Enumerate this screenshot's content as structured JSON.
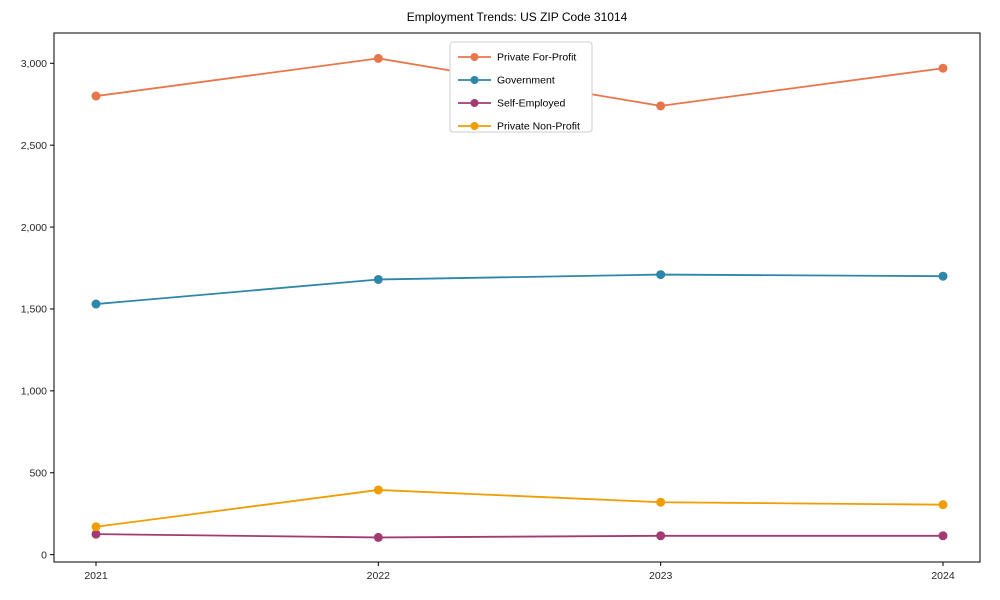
{
  "colors": {
    "axis": "#000000",
    "tick_text": "#262626",
    "legend_border": "#cccccc",
    "background": "#ffffff"
  },
  "chart_data": {
    "type": "line",
    "title": "Employment Trends: US ZIP Code 31014",
    "x": [
      2021,
      2022,
      2023,
      2024
    ],
    "xticklabels": [
      "2021",
      "2022",
      "2023",
      "2024"
    ],
    "yticks": [
      0,
      500,
      1000,
      1500,
      2000,
      2500,
      3000
    ],
    "yticklabels": [
      "0",
      "500",
      "1,000",
      "1,500",
      "2,000",
      "2,500",
      "3,000"
    ],
    "ylim": [
      -45,
      3185
    ],
    "grid": false,
    "marker": "circle",
    "legend_position": "top-center",
    "series": [
      {
        "name": "Private For-Profit",
        "color": "#E8764B",
        "values": [
          2800,
          3030,
          2740,
          2970
        ]
      },
      {
        "name": "Government",
        "color": "#2E86AB",
        "values": [
          1530,
          1680,
          1710,
          1700
        ]
      },
      {
        "name": "Self-Employed",
        "color": "#A23B72",
        "values": [
          125,
          105,
          115,
          115
        ]
      },
      {
        "name": "Private Non-Profit",
        "color": "#F09D01",
        "values": [
          170,
          395,
          320,
          305
        ]
      }
    ]
  }
}
